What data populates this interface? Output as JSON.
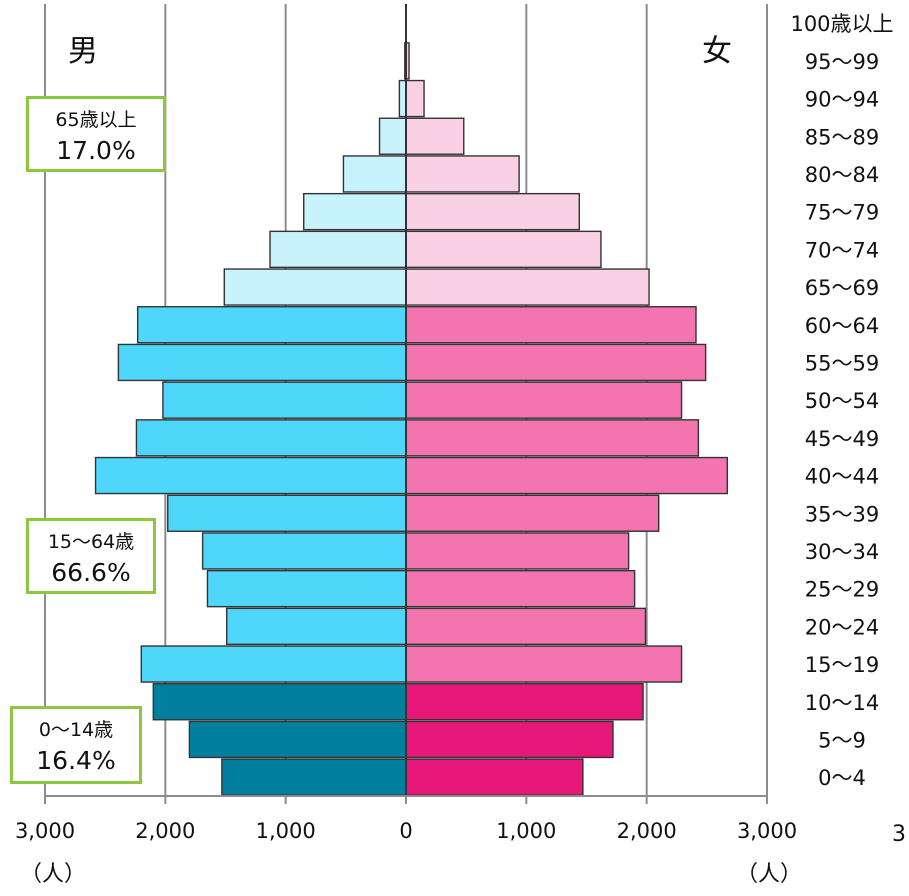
{
  "chart_data": {
    "type": "bar",
    "orientation": "horizontal-population-pyramid",
    "categories": [
      "0～4",
      "5～9",
      "10～14",
      "15～19",
      "20～24",
      "25～29",
      "30～34",
      "35～39",
      "40～44",
      "45～49",
      "50～54",
      "55～59",
      "60～64",
      "65～69",
      "70～74",
      "75～79",
      "80～84",
      "85～89",
      "90～94",
      "95～99",
      "100歳以上"
    ],
    "series": [
      {
        "name": "男",
        "values": [
          1530,
          1800,
          2100,
          2200,
          1490,
          1650,
          1690,
          1980,
          2580,
          2240,
          2020,
          2390,
          2230,
          1510,
          1130,
          850,
          520,
          220,
          55,
          10,
          0
        ],
        "colors_by_group": {
          "0-14": "#00809e",
          "15-64": "#4fd7fb",
          "65+": "#c8f3fd"
        }
      },
      {
        "name": "女",
        "values": [
          1470,
          1720,
          1970,
          2290,
          1990,
          1900,
          1850,
          2100,
          2670,
          2430,
          2290,
          2490,
          2410,
          2020,
          1620,
          1440,
          940,
          480,
          150,
          25,
          0
        ],
        "colors_by_group": {
          "0-14": "#e8177a",
          "15-64": "#f374ae",
          "65+": "#fad0e4"
        }
      }
    ],
    "xlim": [
      -3000,
      3000
    ],
    "x_ticks": [
      -3000,
      -2000,
      -1000,
      0,
      1000,
      2000,
      3000
    ],
    "x_tick_labels": [
      "3,000",
      "2,000",
      "1,000",
      "0",
      "1,000",
      "2,000",
      "3,000"
    ],
    "grid": true
  },
  "labels": {
    "male": "男",
    "female": "女",
    "unit_left": "（人）",
    "unit_right": "（人）",
    "page_number": "3"
  },
  "groups": {
    "elderly": {
      "label": "65歳以上",
      "percent": "17.0%"
    },
    "working": {
      "label": "15～64歳",
      "percent": "66.6%"
    },
    "young": {
      "label": "0～14歳",
      "percent": "16.4%"
    }
  }
}
